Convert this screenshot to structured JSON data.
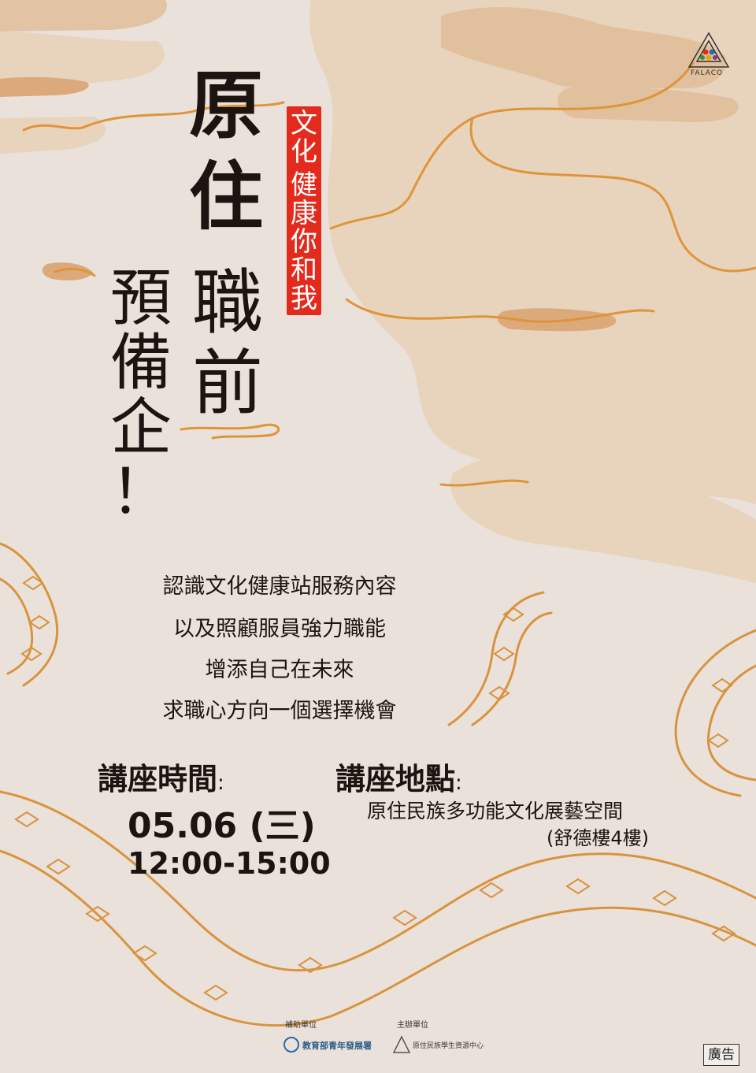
{
  "title": {
    "col1": [
      "原",
      "住"
    ],
    "col2": [
      "職",
      "前"
    ],
    "col3": [
      "預",
      "備",
      "企",
      "！"
    ]
  },
  "slogan": [
    "文",
    "化",
    "健",
    "康",
    "你",
    "和",
    "我"
  ],
  "description": [
    "認識文化健康站服務內容",
    "以及照顧服員強力職能",
    "增添自己在未來",
    "求職心方向一個選擇機會"
  ],
  "time": {
    "label": "講座時間",
    "colon": ":",
    "date": "05.06 (三)",
    "hours": "12:00-15:00"
  },
  "location": {
    "label": "講座地點",
    "colon": ":",
    "place": "原住民族多功能文化展藝空間",
    "building": "(舒德樓4樓)"
  },
  "footer": {
    "sponsor_label": "補助單位",
    "sponsor_name": "教育部青年發展署",
    "organizer_label": "主辦單位",
    "organizer_name": "原住民族學生資源中心",
    "ad_badge": "廣告"
  },
  "corner_logo_text": "FALACO",
  "colors": {
    "background": "#e9e1da",
    "cloud_light": "#e6cdb2",
    "cloud_dark": "#dba97a",
    "line_orange": "#e0943a",
    "slogan_red": "#e32b1d",
    "text": "#1c1410"
  }
}
